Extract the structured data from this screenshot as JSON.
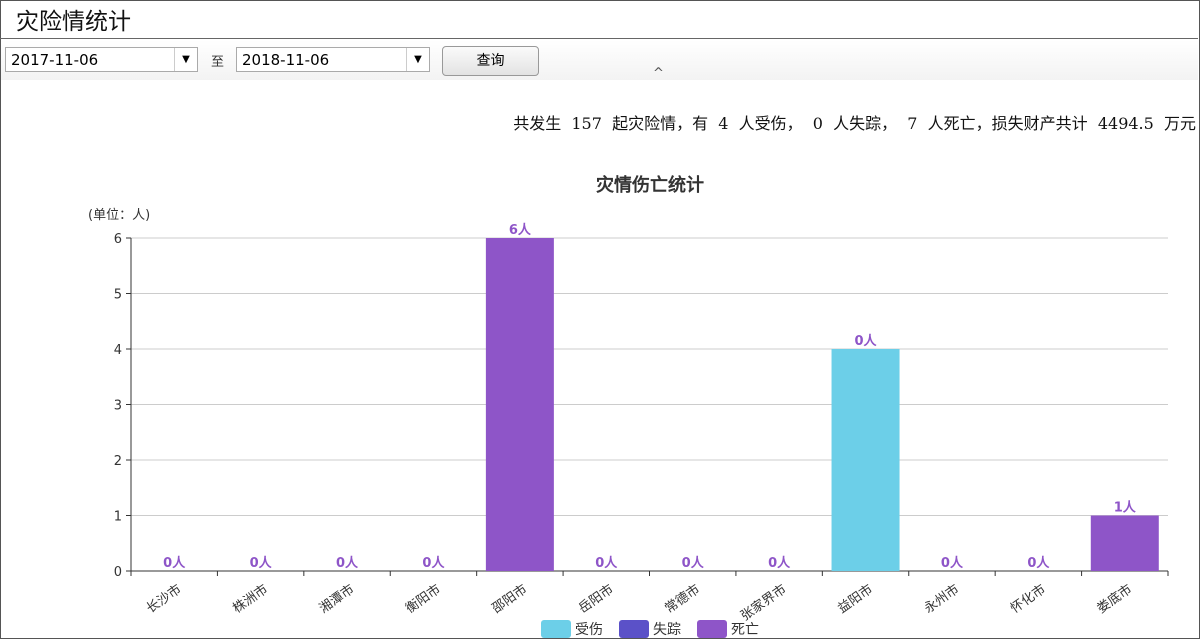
{
  "page": {
    "title": "灾险情统计"
  },
  "filter": {
    "start_date": "2017-11-06",
    "separator": "至",
    "end_date": "2018-11-06",
    "query_label": "查询"
  },
  "summary": {
    "text": "共发生  157  起灾险情，有  4  人受伤，  0  人失踪，  7  人死亡，损失财产共计  4494.5  万元"
  },
  "chart_data": {
    "type": "bar",
    "stacked": true,
    "title": "灾情伤亡统计",
    "ylabel": "(单位：人)",
    "ylim": [
      0,
      6
    ],
    "yticks": [
      0,
      1,
      2,
      3,
      4,
      5,
      6
    ],
    "grid": true,
    "legend_position": "bottom",
    "categories": [
      "长沙市",
      "株洲市",
      "湘潭市",
      "衡阳市",
      "邵阳市",
      "岳阳市",
      "常德市",
      "张家界市",
      "益阳市",
      "永州市",
      "怀化市",
      "娄底市"
    ],
    "series": [
      {
        "name": "受伤",
        "color": "#6ccfe8",
        "values": [
          0,
          0,
          0,
          0,
          0,
          0,
          0,
          0,
          4,
          0,
          0,
          0
        ]
      },
      {
        "name": "失踪",
        "color": "#5b51c8",
        "values": [
          0,
          0,
          0,
          0,
          0,
          0,
          0,
          0,
          0,
          0,
          0,
          0
        ]
      },
      {
        "name": "死亡",
        "color": "#8e55c8",
        "values": [
          0,
          0,
          0,
          0,
          6,
          0,
          0,
          0,
          0,
          0,
          0,
          1
        ]
      }
    ],
    "data_labels": [
      "0人",
      "0人",
      "0人",
      "0人",
      "6人",
      "0人",
      "0人",
      "0人",
      "0人",
      "0人",
      "0人",
      "1人"
    ]
  }
}
